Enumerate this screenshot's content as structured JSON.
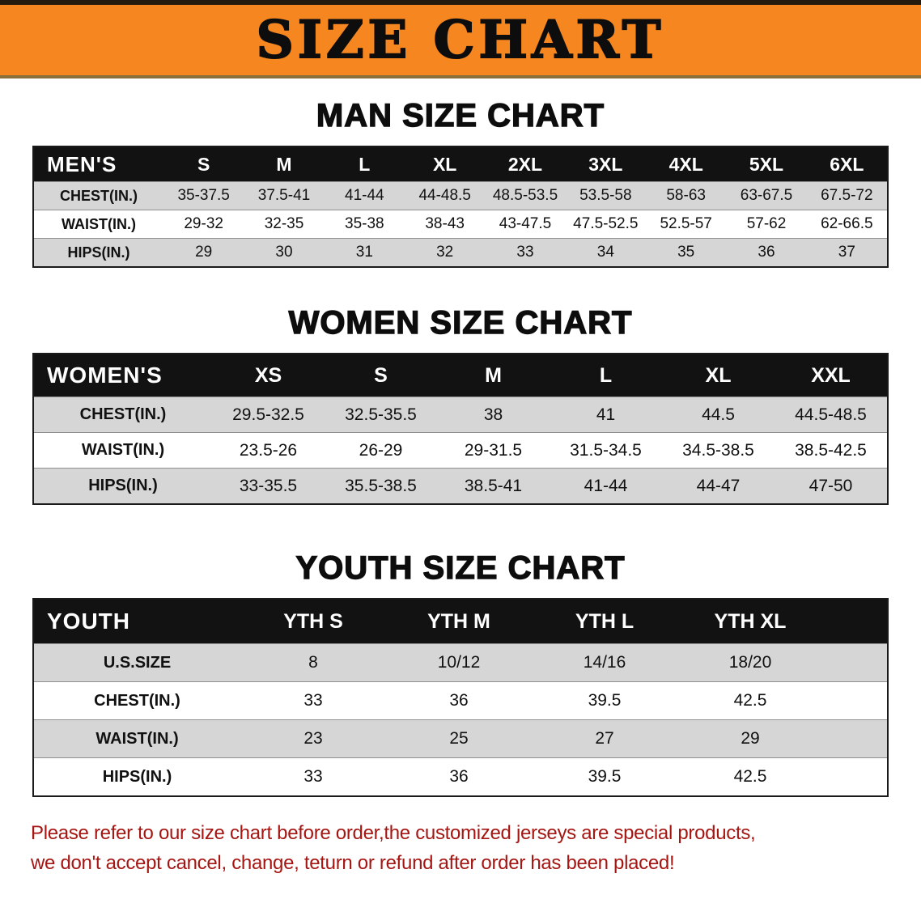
{
  "banner": {
    "title": "SIZE CHART",
    "bg_color": "#f6861f"
  },
  "sections": [
    {
      "heading": "MAN SIZE CHART",
      "table": {
        "id": "mens",
        "header": [
          "MEN'S",
          "S",
          "M",
          "L",
          "XL",
          "2XL",
          "3XL",
          "4XL",
          "5XL",
          "6XL"
        ],
        "rows": [
          {
            "label": "CHEST(IN.)",
            "values": [
              "35-37.5",
              "37.5-41",
              "41-44",
              "44-48.5",
              "48.5-53.5",
              "53.5-58",
              "58-63",
              "63-67.5",
              "67.5-72"
            ]
          },
          {
            "label": "WAIST(IN.)",
            "values": [
              "29-32",
              "32-35",
              "35-38",
              "38-43",
              "43-47.5",
              "47.5-52.5",
              "52.5-57",
              "57-62",
              "62-66.5"
            ]
          },
          {
            "label": "HIPS(IN.)",
            "values": [
              "29",
              "30",
              "31",
              "32",
              "33",
              "34",
              "35",
              "36",
              "37"
            ]
          }
        ]
      }
    },
    {
      "heading": "WOMEN SIZE CHART",
      "table": {
        "id": "womens",
        "header": [
          "WOMEN'S",
          "XS",
          "S",
          "M",
          "L",
          "XL",
          "XXL"
        ],
        "rows": [
          {
            "label": "CHEST(IN.)",
            "values": [
              "29.5-32.5",
              "32.5-35.5",
              "38",
              "41",
              "44.5",
              "44.5-48.5"
            ]
          },
          {
            "label": "WAIST(IN.)",
            "values": [
              "23.5-26",
              "26-29",
              "29-31.5",
              "31.5-34.5",
              "34.5-38.5",
              "38.5-42.5"
            ]
          },
          {
            "label": "HIPS(IN.)",
            "values": [
              "33-35.5",
              "35.5-38.5",
              "38.5-41",
              "41-44",
              "44-47",
              "47-50"
            ]
          }
        ]
      }
    },
    {
      "heading": "YOUTH SIZE CHART",
      "table": {
        "id": "youth",
        "header": [
          "YOUTH",
          "YTH S",
          "YTH M",
          "YTH L",
          "YTH XL"
        ],
        "rows": [
          {
            "label": "U.S.SIZE",
            "values": [
              "8",
              "10/12",
              "14/16",
              "18/20"
            ]
          },
          {
            "label": "CHEST(IN.)",
            "values": [
              "33",
              "36",
              "39.5",
              "42.5"
            ]
          },
          {
            "label": "WAIST(IN.)",
            "values": [
              "23",
              "25",
              "27",
              "29"
            ]
          },
          {
            "label": "HIPS(IN.)",
            "values": [
              "33",
              "36",
              "39.5",
              "42.5"
            ]
          }
        ]
      }
    }
  ],
  "footer": {
    "line1": "Please refer to our size chart before order,the customized jerseys are special products,",
    "line2": "we don't accept cancel, change, teturn or refund after order has been placed!",
    "color": "#a51512"
  }
}
